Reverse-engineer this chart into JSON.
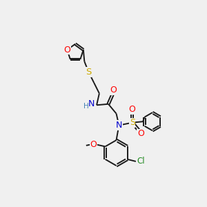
{
  "bg_color": "#f0f0f0",
  "bond_color": "#1a1a1a",
  "atom_colors": {
    "O": "#ff0000",
    "N": "#0000cd",
    "S": "#ccaa00",
    "Cl": "#228b22",
    "C": "#1a1a1a",
    "H": "#4682b4"
  },
  "font_size": 8.5,
  "figsize": [
    3.0,
    3.0
  ],
  "dpi": 100,
  "lw": 1.4
}
